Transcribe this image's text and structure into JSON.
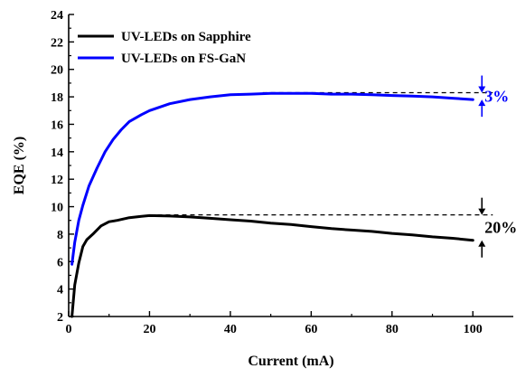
{
  "chart_data": {
    "type": "line",
    "xlabel": "Current (mA)",
    "ylabel": "EQE (%)",
    "xlim": [
      0,
      110
    ],
    "ylim": [
      2,
      24
    ],
    "x_ticks": [
      0,
      20,
      40,
      60,
      80,
      100
    ],
    "y_ticks": [
      2,
      4,
      6,
      8,
      10,
      12,
      14,
      16,
      18,
      20,
      22,
      24
    ],
    "grid": false,
    "legend_position": "top-left",
    "series": [
      {
        "name": "UV-LEDs on Sapphire",
        "color": "#000000",
        "points": [
          [
            0.8,
            2.0
          ],
          [
            1.5,
            4.3
          ],
          [
            2.5,
            5.9
          ],
          [
            3.5,
            7.1
          ],
          [
            4.5,
            7.6
          ],
          [
            6,
            8.0
          ],
          [
            8,
            8.6
          ],
          [
            10,
            8.9
          ],
          [
            12,
            9.0
          ],
          [
            15,
            9.2
          ],
          [
            18,
            9.3
          ],
          [
            20,
            9.35
          ],
          [
            25,
            9.32
          ],
          [
            30,
            9.25
          ],
          [
            35,
            9.15
          ],
          [
            40,
            9.05
          ],
          [
            45,
            8.95
          ],
          [
            50,
            8.8
          ],
          [
            55,
            8.7
          ],
          [
            60,
            8.55
          ],
          [
            65,
            8.4
          ],
          [
            70,
            8.3
          ],
          [
            75,
            8.2
          ],
          [
            80,
            8.05
          ],
          [
            85,
            7.95
          ],
          [
            90,
            7.8
          ],
          [
            95,
            7.7
          ],
          [
            100,
            7.55
          ]
        ]
      },
      {
        "name": "UV-LEDs on FS-GaN",
        "color": "#0000ff",
        "points": [
          [
            0.8,
            5.8
          ],
          [
            1.5,
            7.4
          ],
          [
            2.5,
            9.0
          ],
          [
            3.5,
            10.1
          ],
          [
            5,
            11.5
          ],
          [
            7,
            12.8
          ],
          [
            9,
            14.0
          ],
          [
            11,
            14.9
          ],
          [
            13,
            15.6
          ],
          [
            15,
            16.2
          ],
          [
            18,
            16.7
          ],
          [
            20,
            17.0
          ],
          [
            25,
            17.5
          ],
          [
            30,
            17.8
          ],
          [
            35,
            18.0
          ],
          [
            40,
            18.15
          ],
          [
            45,
            18.2
          ],
          [
            50,
            18.25
          ],
          [
            55,
            18.25
          ],
          [
            60,
            18.25
          ],
          [
            65,
            18.2
          ],
          [
            70,
            18.2
          ],
          [
            75,
            18.15
          ],
          [
            80,
            18.1
          ],
          [
            85,
            18.05
          ],
          [
            90,
            18.0
          ],
          [
            95,
            17.9
          ],
          [
            100,
            17.8
          ]
        ]
      }
    ],
    "annotations": [
      {
        "text": "3%",
        "color": "#0000ff",
        "reference_level": 18.3,
        "reference_from_x": 48,
        "reference_to_x": 100,
        "end_value": 17.8,
        "at_x": 100
      },
      {
        "text": "20%",
        "color": "#000000",
        "reference_level": 9.4,
        "reference_from_x": 20,
        "reference_to_x": 100,
        "end_value": 7.55,
        "at_x": 100
      }
    ]
  }
}
